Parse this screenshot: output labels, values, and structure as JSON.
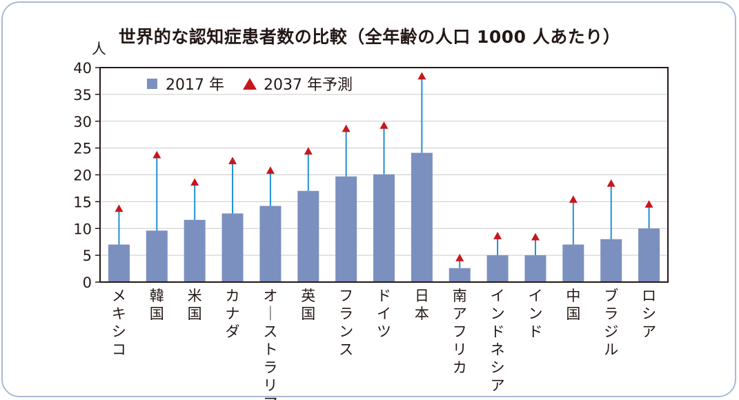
{
  "title": "世界的な認知症患者数の比較（全年齢の人口 1000 人あたり）",
  "chart_data": {
    "type": "bar",
    "title": "世界的な認知症患者数の比較（全年齢の人口 1000 人あたり）",
    "ylabel": "人",
    "xlabel": "",
    "ylim": [
      0,
      40
    ],
    "yticks": [
      0,
      5,
      10,
      15,
      20,
      25,
      30,
      35,
      40
    ],
    "grid": true,
    "legend_position": "top-left",
    "categories": [
      "メキシコ",
      "韓国",
      "米国",
      "カナダ",
      "オーストラリア",
      "英国",
      "フランス",
      "ドイツ",
      "日本",
      "南アフリカ",
      "インドネシア",
      "インド",
      "中国",
      "ブラジル",
      "ロシア"
    ],
    "series": [
      {
        "name": "2017 年",
        "marker": "bar",
        "color": "#7b90bf",
        "values": [
          7,
          9.6,
          11.6,
          12.8,
          14.2,
          17,
          19.7,
          20.1,
          24.1,
          2.6,
          5,
          5,
          7,
          8,
          10
        ]
      },
      {
        "name": "2037 年予測",
        "marker": "triangle",
        "color": "#c8161d",
        "values": [
          13.7,
          23.7,
          18.6,
          22.6,
          20.8,
          24.4,
          28.6,
          29.2,
          38.4,
          4.5,
          8.6,
          8.4,
          15.4,
          18.4,
          14.5
        ]
      }
    ],
    "connector_color": "#1f8fd6"
  }
}
